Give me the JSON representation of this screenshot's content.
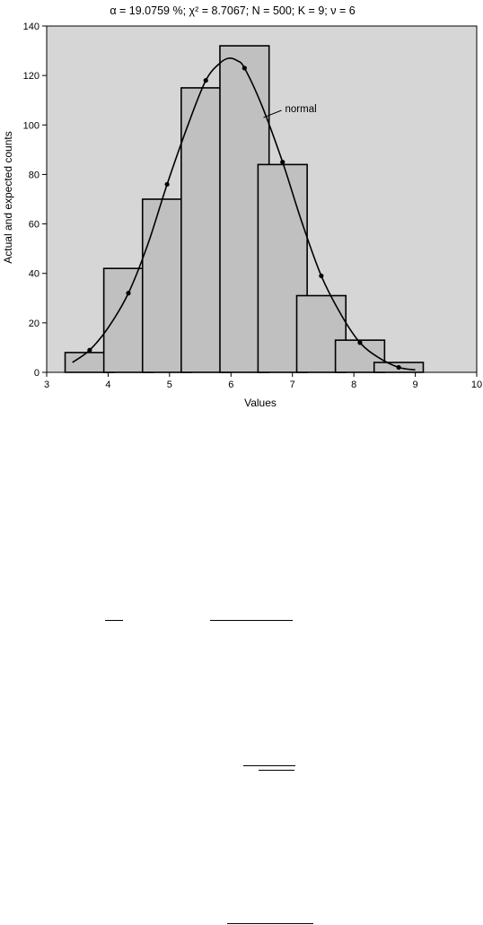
{
  "chart_data": {
    "type": "bar",
    "title": "α = 19.0759 %; χ² = 8.7067; N = 500; K = 9; ν = 6",
    "xlabel": "Values",
    "ylabel": "Actual and expected counts",
    "xlim": [
      3,
      10
    ],
    "ylim": [
      0,
      140
    ],
    "xticks": [
      3,
      4,
      5,
      6,
      7,
      8,
      9,
      10
    ],
    "yticks": [
      0,
      20,
      40,
      60,
      80,
      100,
      120,
      140
    ],
    "bar_width": 0.8,
    "bars": {
      "x": [
        3.7,
        4.33,
        4.96,
        5.59,
        6.22,
        6.84,
        7.47,
        8.1,
        8.73
      ],
      "values": [
        8,
        42,
        70,
        115,
        132,
        84,
        31,
        13,
        4
      ]
    },
    "expected_points": {
      "x": [
        3.7,
        4.33,
        4.96,
        5.59,
        6.22,
        6.84,
        7.47,
        8.1,
        8.73
      ],
      "values": [
        9,
        32,
        76,
        118,
        123,
        85,
        39,
        12,
        2
      ]
    },
    "curve": {
      "name": "normal",
      "x": [
        3.42,
        3.7,
        4.0,
        4.33,
        4.65,
        4.96,
        5.3,
        5.59,
        5.82,
        5.97,
        6.1,
        6.22,
        6.5,
        6.84,
        7.15,
        7.47,
        7.8,
        8.1,
        8.4,
        8.73,
        9.0
      ],
      "values": [
        4,
        9,
        18,
        32,
        52,
        76,
        100,
        118,
        125,
        127,
        126,
        123,
        108,
        85,
        61,
        39,
        23,
        12,
        6,
        2,
        1
      ]
    },
    "background_color": "#d6d6d6",
    "bar_color": "#c0c0c0"
  }
}
